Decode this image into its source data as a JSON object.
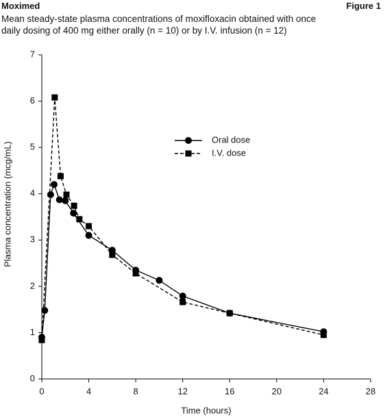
{
  "header": {
    "brand": "Moximed",
    "figure": "Figure 1"
  },
  "chart_data": {
    "type": "line",
    "title": "Mean steady-state plasma concentrations of moxifloxacin obtained with once daily dosing of 400 mg either orally (n = 10) or by I.V. infusion (n = 12)",
    "x_label": "Time (hours)",
    "y_label": "Plasma concentration (mcg/mL)",
    "xlim": [
      0,
      28
    ],
    "xticks": [
      0,
      4,
      8,
      12,
      16,
      20,
      24,
      28
    ],
    "ylim": [
      0,
      7
    ],
    "yticks": [
      0,
      1,
      2,
      3,
      4,
      5,
      6,
      7
    ],
    "grid": false,
    "legend": "center",
    "series": [
      {
        "name": "Oral dose",
        "color": "#000000",
        "marker": "circle",
        "dash": "solid",
        "x": [
          0,
          0.25,
          0.75,
          1.05,
          1.5,
          2,
          2.7,
          4,
          6,
          8,
          10,
          12,
          16,
          24
        ],
        "values": [
          0.9,
          1.48,
          3.98,
          4.2,
          3.87,
          3.85,
          3.58,
          3.1,
          2.78,
          2.35,
          2.13,
          1.79,
          1.42,
          1.02
        ]
      },
      {
        "name": "I.V. dose",
        "color": "#000000",
        "marker": "square",
        "dash": "dashed",
        "x": [
          0,
          1.1,
          1.6,
          2.1,
          2.75,
          3.2,
          4,
          6,
          8,
          12,
          16,
          24
        ],
        "values": [
          0.84,
          6.08,
          4.38,
          3.98,
          3.74,
          3.45,
          3.3,
          2.68,
          2.28,
          1.66,
          1.42,
          0.95
        ]
      }
    ]
  }
}
